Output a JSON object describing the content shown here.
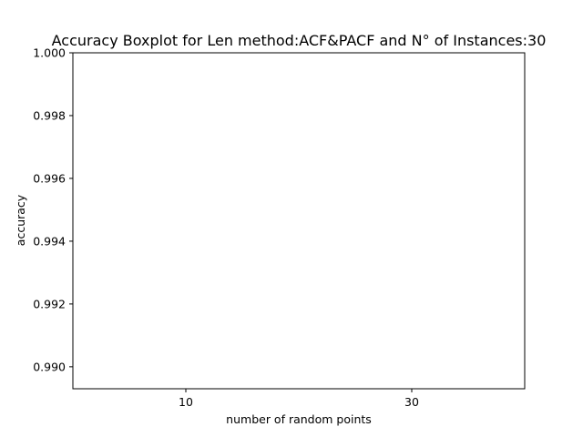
{
  "chart_data": {
    "type": "box",
    "title": "Accuracy Boxplot for Len method:ACF&PACF and N° of Instances:30",
    "xlabel": "number of random points",
    "ylabel": "accuracy",
    "categories": [
      "10",
      "30"
    ],
    "series": [
      {
        "values": [
          1.0,
          1.0
        ]
      }
    ],
    "ylim": [
      0.9893,
      1.0
    ],
    "yticks": [
      "0.990",
      "0.992",
      "0.994",
      "0.996",
      "0.998",
      "1.000"
    ],
    "ytick_values": [
      0.99,
      0.992,
      0.994,
      0.996,
      0.998,
      1.0
    ],
    "grid": false
  }
}
